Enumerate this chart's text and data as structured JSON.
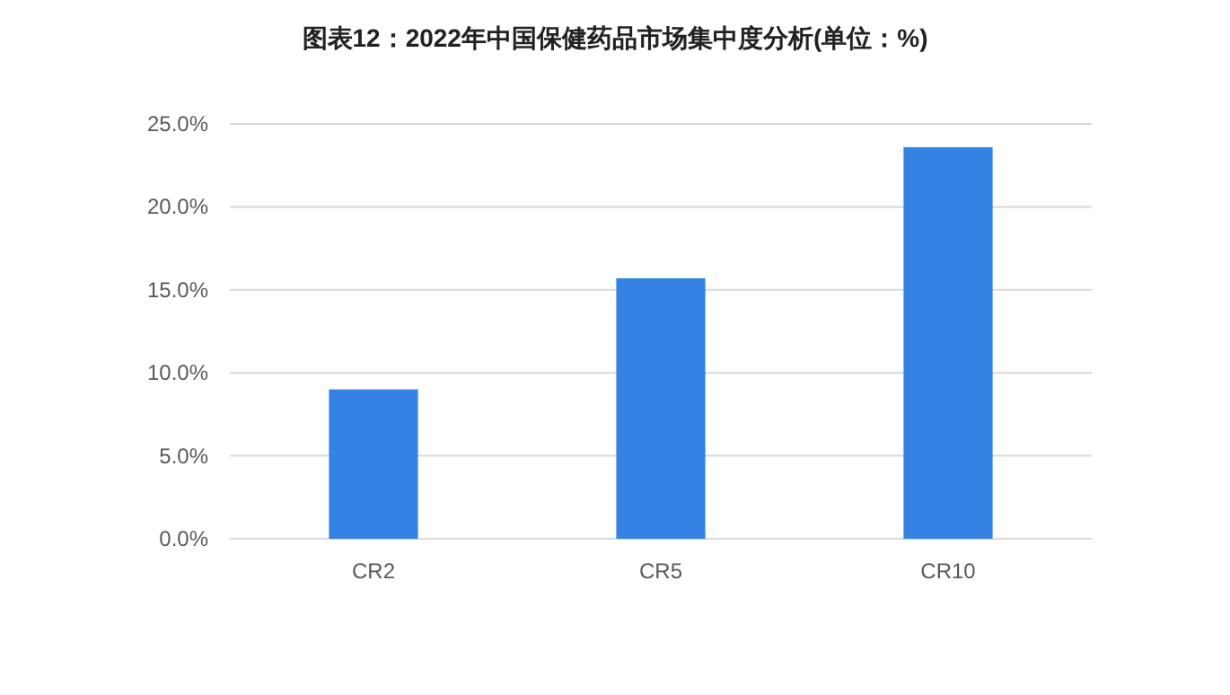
{
  "chart_data": {
    "type": "bar",
    "title": "图表12：2022年中国保健药品市场集中度分析(单位：%)",
    "categories": [
      "CR2",
      "CR5",
      "CR10"
    ],
    "values": [
      9.0,
      15.7,
      23.6
    ],
    "color": "#3483e4",
    "ylim": [
      0,
      25
    ],
    "yticks": [
      {
        "value": 0,
        "label": "0.0%"
      },
      {
        "value": 5,
        "label": "5.0%"
      },
      {
        "value": 10,
        "label": "10.0%"
      },
      {
        "value": 15,
        "label": "15.0%"
      },
      {
        "value": 20,
        "label": "20.0%"
      },
      {
        "value": 25,
        "label": "25.0%"
      }
    ],
    "grid": "y"
  }
}
